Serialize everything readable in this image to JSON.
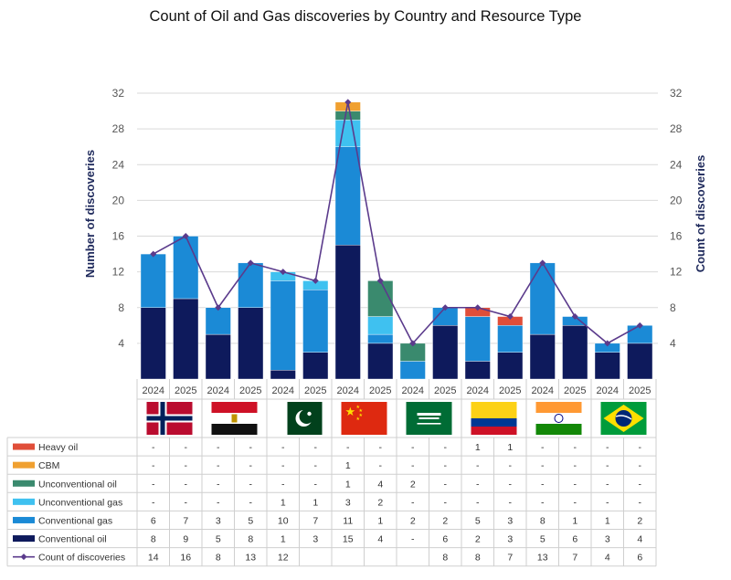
{
  "chart_data": {
    "type": "bar",
    "title": "Count of Oil and Gas discoveries by Country and Resource Type",
    "ylabel": "Number of discoveries",
    "y2label": "Count of discoveries",
    "ylim": [
      0,
      32
    ],
    "yticks": [
      4,
      8,
      12,
      16,
      20,
      24,
      28,
      32
    ],
    "countries": [
      {
        "name": "Norway",
        "flag": "norway-flag"
      },
      {
        "name": "Egypt",
        "flag": "egypt-flag"
      },
      {
        "name": "Pakistan",
        "flag": "pakistan-flag"
      },
      {
        "name": "China",
        "flag": "china-flag"
      },
      {
        "name": "Saudi Arabia",
        "flag": "saudi-arabia-flag"
      },
      {
        "name": "Colombia",
        "flag": "colombia-flag"
      },
      {
        "name": "India",
        "flag": "india-flag"
      },
      {
        "name": "Brazil",
        "flag": "brazil-flag"
      }
    ],
    "categories": [
      "2024",
      "2025",
      "2024",
      "2025",
      "2024",
      "2025",
      "2024",
      "2025",
      "2024",
      "2025",
      "2024",
      "2025",
      "2024",
      "2025",
      "2024",
      "2025"
    ],
    "series": [
      {
        "name": "Heavy oil",
        "color": "#e04e39",
        "values": [
          null,
          null,
          null,
          null,
          null,
          null,
          null,
          null,
          null,
          null,
          1,
          1,
          null,
          null,
          null,
          null
        ]
      },
      {
        "name": "CBM",
        "color": "#f0a030",
        "values": [
          null,
          null,
          null,
          null,
          null,
          null,
          1,
          null,
          null,
          null,
          null,
          null,
          null,
          null,
          null,
          null
        ]
      },
      {
        "name": "Unconventional oil",
        "color": "#3a8a6e",
        "values": [
          null,
          null,
          null,
          null,
          null,
          null,
          1,
          4,
          2,
          null,
          null,
          null,
          null,
          null,
          null,
          null
        ]
      },
      {
        "name": "Unconventional gas",
        "color": "#3fc1f0",
        "values": [
          null,
          null,
          null,
          null,
          1,
          1,
          3,
          2,
          null,
          null,
          null,
          null,
          null,
          null,
          null,
          null
        ]
      },
      {
        "name": "Conventional gas",
        "color": "#1b8ad6",
        "values": [
          6,
          7,
          3,
          5,
          10,
          7,
          11,
          1,
          2,
          2,
          5,
          3,
          8,
          1,
          1,
          2
        ]
      },
      {
        "name": "Conventional oil",
        "color": "#0e1a5c",
        "values": [
          8,
          9,
          5,
          8,
          1,
          3,
          15,
          4,
          null,
          6,
          2,
          3,
          5,
          6,
          3,
          4
        ]
      }
    ],
    "line": {
      "name": "Count of discoveries",
      "color": "#5b3b8c",
      "values": [
        14,
        16,
        8,
        13,
        12,
        11,
        31,
        11,
        4,
        8,
        8,
        7,
        13,
        7,
        4,
        6
      ]
    },
    "table_display": [
      [
        "-",
        "-",
        "-",
        "-",
        "-",
        "-",
        "-",
        "-",
        "-",
        "-",
        "1",
        "1",
        "-",
        "-",
        "-",
        "-"
      ],
      [
        "-",
        "-",
        "-",
        "-",
        "-",
        "-",
        "1",
        "-",
        "-",
        "-",
        "-",
        "-",
        "-",
        "-",
        "-",
        "-"
      ],
      [
        "-",
        "-",
        "-",
        "-",
        "-",
        "-",
        "1",
        "4",
        "2",
        "-",
        "-",
        "-",
        "-",
        "-",
        "-",
        "-"
      ],
      [
        "-",
        "-",
        "-",
        "-",
        "1",
        "1",
        "3",
        "2",
        "-",
        "-",
        "-",
        "-",
        "-",
        "-",
        "-",
        "-"
      ],
      [
        "6",
        "7",
        "3",
        "5",
        "10",
        "7",
        "11",
        "1",
        "2",
        "2",
        "5",
        "3",
        "8",
        "1",
        "1",
        "2"
      ],
      [
        "8",
        "9",
        "5",
        "8",
        "1",
        "3",
        "15",
        "4",
        "-",
        "6",
        "2",
        "3",
        "5",
        "6",
        "3",
        "4"
      ],
      [
        "14",
        "16",
        "8",
        "13",
        "12",
        "",
        "",
        "",
        "",
        "8",
        "8",
        "7",
        "13",
        "7",
        "4",
        "6"
      ]
    ]
  }
}
